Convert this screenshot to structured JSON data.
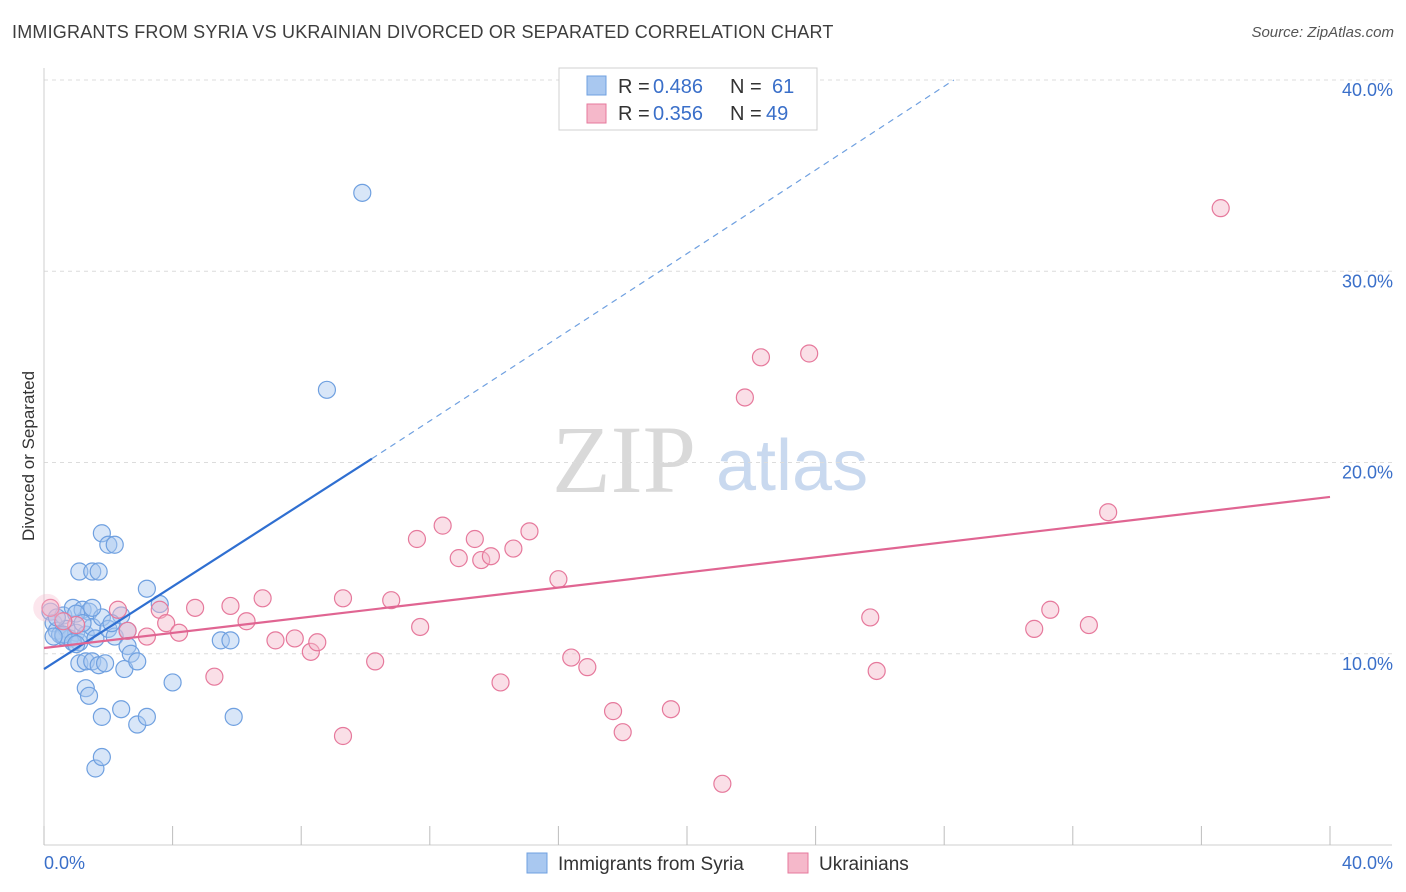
{
  "header": {
    "title": "IMMIGRANTS FROM SYRIA VS UKRAINIAN DIVORCED OR SEPARATED CORRELATION CHART",
    "source": "Source: ZipAtlas.com"
  },
  "watermark": {
    "part1": "ZIP",
    "part2": "atlas"
  },
  "legend": {
    "rows": [
      {
        "r_label": "R =",
        "r_value": "0.486",
        "n_label": "N =",
        "n_value": "61",
        "color": "#a9c8f0"
      },
      {
        "r_label": "R =",
        "r_value": "0.356",
        "n_label": "N =",
        "n_value": "49",
        "color": "#f5b8ca"
      }
    ]
  },
  "chart_data": {
    "type": "scatter",
    "xlabel": "",
    "ylabel": "Divorced or Separated",
    "xlim": [
      0,
      40
    ],
    "ylim": [
      0,
      40
    ],
    "x_tick_labels": [
      {
        "value": 0,
        "label": "0.0%"
      },
      {
        "value": 40,
        "label": "40.0%"
      }
    ],
    "y_tick_labels": [
      {
        "value": 10,
        "label": "10.0%"
      },
      {
        "value": 20,
        "label": "20.0%"
      },
      {
        "value": 30,
        "label": "30.0%"
      },
      {
        "value": 40,
        "label": "40.0%"
      }
    ],
    "grid": "horizontal dashed",
    "legend_position": "top-center",
    "series": [
      {
        "name": "Immigrants from Syria",
        "color": "#6fa0e0",
        "fill": "#a9c8f0",
        "trend": {
          "x0": 0,
          "y0": 9.2,
          "x1": 10.2,
          "y1": 20.2,
          "dashed_to_x": 28.3,
          "dashed_to_y": 40.0
        },
        "points": [
          [
            0.2,
            12.2
          ],
          [
            0.3,
            11.6
          ],
          [
            0.4,
            11.2
          ],
          [
            0.5,
            11.0
          ],
          [
            0.6,
            12.0
          ],
          [
            0.7,
            11.3
          ],
          [
            0.8,
            10.8
          ],
          [
            0.9,
            12.4
          ],
          [
            1.0,
            11.1
          ],
          [
            1.1,
            10.6
          ],
          [
            1.2,
            12.3
          ],
          [
            1.3,
            11.0
          ],
          [
            1.4,
            12.2
          ],
          [
            1.5,
            11.4
          ],
          [
            1.6,
            10.8
          ],
          [
            1.8,
            11.9
          ],
          [
            2.0,
            11.3
          ],
          [
            2.2,
            10.9
          ],
          [
            2.4,
            12.0
          ],
          [
            2.6,
            11.2
          ],
          [
            0.4,
            11.9
          ],
          [
            0.6,
            10.9
          ],
          [
            1.0,
            12.1
          ],
          [
            1.5,
            12.4
          ],
          [
            1.1,
            14.3
          ],
          [
            1.5,
            14.3
          ],
          [
            1.7,
            14.3
          ],
          [
            1.8,
            16.3
          ],
          [
            2.0,
            15.7
          ],
          [
            2.2,
            15.7
          ],
          [
            3.2,
            13.4
          ],
          [
            3.6,
            12.6
          ],
          [
            1.1,
            9.5
          ],
          [
            1.3,
            9.6
          ],
          [
            1.5,
            9.6
          ],
          [
            1.7,
            9.4
          ],
          [
            1.9,
            9.5
          ],
          [
            2.5,
            9.2
          ],
          [
            2.6,
            10.4
          ],
          [
            2.7,
            10.0
          ],
          [
            2.9,
            9.6
          ],
          [
            4.0,
            8.5
          ],
          [
            1.3,
            8.2
          ],
          [
            1.4,
            7.8
          ],
          [
            1.8,
            6.7
          ],
          [
            2.4,
            7.1
          ],
          [
            2.9,
            6.3
          ],
          [
            3.2,
            6.7
          ],
          [
            5.5,
            10.7
          ],
          [
            5.8,
            10.7
          ],
          [
            5.9,
            6.7
          ],
          [
            1.6,
            4.0
          ],
          [
            1.8,
            4.6
          ],
          [
            8.8,
            23.8
          ],
          [
            9.9,
            34.1
          ],
          [
            0.6,
            11.0
          ],
          [
            0.9,
            10.6
          ],
          [
            1.2,
            11.6
          ],
          [
            0.3,
            10.9
          ],
          [
            2.1,
            11.6
          ],
          [
            1.0,
            10.5
          ]
        ]
      },
      {
        "name": "Ukrainians",
        "color": "#e6799c",
        "fill": "#f5b8ca",
        "trend": {
          "x0": 0,
          "y0": 10.3,
          "x1": 40,
          "y1": 18.2
        },
        "points": [
          [
            0.2,
            12.4
          ],
          [
            1.0,
            11.5
          ],
          [
            2.3,
            12.3
          ],
          [
            2.6,
            11.2
          ],
          [
            3.2,
            10.9
          ],
          [
            3.6,
            12.3
          ],
          [
            3.8,
            11.6
          ],
          [
            4.2,
            11.1
          ],
          [
            4.7,
            12.4
          ],
          [
            5.3,
            8.8
          ],
          [
            5.8,
            12.5
          ],
          [
            6.3,
            11.7
          ],
          [
            6.8,
            12.9
          ],
          [
            7.2,
            10.7
          ],
          [
            7.8,
            10.8
          ],
          [
            8.3,
            10.1
          ],
          [
            8.5,
            10.6
          ],
          [
            9.3,
            5.7
          ],
          [
            9.3,
            12.9
          ],
          [
            10.3,
            9.6
          ],
          [
            10.8,
            12.8
          ],
          [
            11.6,
            16.0
          ],
          [
            11.7,
            11.4
          ],
          [
            12.4,
            16.7
          ],
          [
            12.9,
            15.0
          ],
          [
            13.4,
            16.0
          ],
          [
            13.6,
            14.9
          ],
          [
            13.9,
            15.1
          ],
          [
            14.2,
            8.5
          ],
          [
            14.6,
            15.5
          ],
          [
            15.1,
            16.4
          ],
          [
            16.0,
            13.9
          ],
          [
            16.4,
            9.8
          ],
          [
            16.9,
            9.3
          ],
          [
            17.7,
            7.0
          ],
          [
            18.0,
            5.9
          ],
          [
            19.5,
            7.1
          ],
          [
            21.1,
            3.2
          ],
          [
            21.8,
            23.4
          ],
          [
            22.3,
            25.5
          ],
          [
            23.8,
            25.7
          ],
          [
            25.7,
            11.9
          ],
          [
            25.9,
            9.1
          ],
          [
            30.8,
            11.3
          ],
          [
            31.3,
            12.3
          ],
          [
            32.5,
            11.5
          ],
          [
            33.1,
            17.4
          ],
          [
            36.6,
            33.3
          ],
          [
            0.6,
            11.7
          ]
        ]
      }
    ]
  }
}
